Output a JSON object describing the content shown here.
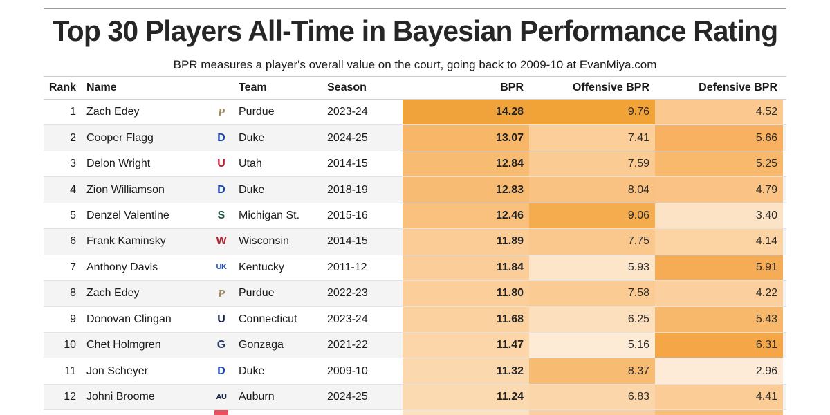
{
  "chart_data": {
    "type": "table",
    "title": "Top 30 Players All-Time in Bayesian Performance Rating",
    "subtitle": "BPR measures a player's overall value on the court, going back to 2009-10 at EvanMiya.com",
    "columns": [
      "Rank",
      "Name",
      "Team",
      "Season",
      "BPR",
      "Offensive BPR",
      "Defensive BPR"
    ],
    "rows": [
      {
        "rank": "1",
        "name": "Zach Edey",
        "team": "Purdue",
        "season": "2023-24",
        "bpr": "14.28",
        "obpr": "9.76",
        "dbpr": "4.52",
        "logo": {
          "label": "P",
          "color": "#9D8A5F",
          "serif": true
        },
        "colors": {
          "bpr": "#F0A33B",
          "obpr": "#F1A338",
          "dbpr": "#FBC98F"
        }
      },
      {
        "rank": "2",
        "name": "Cooper Flagg",
        "team": "Duke",
        "season": "2024-25",
        "bpr": "13.07",
        "obpr": "7.41",
        "dbpr": "5.66",
        "logo": {
          "label": "D",
          "color": "#1646B5"
        },
        "colors": {
          "bpr": "#F7B668",
          "obpr": "#FBCE9A",
          "dbpr": "#F7B160"
        }
      },
      {
        "rank": "3",
        "name": "Delon Wright",
        "team": "Utah",
        "season": "2014-15",
        "bpr": "12.84",
        "obpr": "7.59",
        "dbpr": "5.25",
        "logo": {
          "label": "U",
          "color": "#CE1126"
        },
        "colors": {
          "bpr": "#F8BB72",
          "obpr": "#FACB92",
          "dbpr": "#F8B96D"
        }
      },
      {
        "rank": "4",
        "name": "Zion Williamson",
        "team": "Duke",
        "season": "2018-19",
        "bpr": "12.83",
        "obpr": "8.04",
        "dbpr": "4.79",
        "logo": {
          "label": "D",
          "color": "#1646B5"
        },
        "colors": {
          "bpr": "#F8BB73",
          "obpr": "#F9C283",
          "dbpr": "#FAC285"
        }
      },
      {
        "rank": "5",
        "name": "Denzel Valentine",
        "team": "Michigan St.",
        "season": "2015-16",
        "bpr": "12.46",
        "obpr": "9.06",
        "dbpr": "3.40",
        "logo": {
          "label": "S",
          "color": "#1E5741"
        },
        "colors": {
          "bpr": "#F9C07E",
          "obpr": "#F4AC4E",
          "dbpr": "#FDE3C6"
        }
      },
      {
        "rank": "6",
        "name": "Frank Kaminsky",
        "team": "Wisconsin",
        "season": "2014-15",
        "bpr": "11.89",
        "obpr": "7.75",
        "dbpr": "4.14",
        "logo": {
          "label": "W",
          "color": "#AD2433"
        },
        "colors": {
          "bpr": "#FBCC96",
          "obpr": "#FAC88D",
          "dbpr": "#FCD3A3"
        }
      },
      {
        "rank": "7",
        "name": "Anthony Davis",
        "team": "Kentucky",
        "season": "2011-12",
        "bpr": "11.84",
        "obpr": "5.93",
        "dbpr": "5.91",
        "logo": {
          "label": "UK",
          "color": "#2050C8",
          "small": true
        },
        "colors": {
          "bpr": "#FBCD98",
          "obpr": "#FDE5C9",
          "dbpr": "#F6AC55"
        }
      },
      {
        "rank": "8",
        "name": "Zach Edey",
        "team": "Purdue",
        "season": "2022-23",
        "bpr": "11.80",
        "obpr": "7.58",
        "dbpr": "4.22",
        "logo": {
          "label": "P",
          "color": "#9D8A5F",
          "serif": true
        },
        "colors": {
          "bpr": "#FBCE9A",
          "obpr": "#FACB93",
          "dbpr": "#FBD09E"
        }
      },
      {
        "rank": "9",
        "name": "Donovan Clingan",
        "team": "Connecticut",
        "season": "2023-24",
        "bpr": "11.68",
        "obpr": "6.25",
        "dbpr": "5.43",
        "logo": {
          "label": "U",
          "color": "#19224F"
        },
        "colors": {
          "bpr": "#FBD1A0",
          "obpr": "#FCDFBD",
          "dbpr": "#F8B86B"
        }
      },
      {
        "rank": "10",
        "name": "Chet Holmgren",
        "team": "Gonzaga",
        "season": "2021-22",
        "bpr": "11.47",
        "obpr": "5.16",
        "dbpr": "6.31",
        "logo": {
          "label": "G",
          "color": "#2B3A67"
        },
        "colors": {
          "bpr": "#FCD5A8",
          "obpr": "#FEEBD6",
          "dbpr": "#F5A748"
        }
      },
      {
        "rank": "11",
        "name": "Jon Scheyer",
        "team": "Duke",
        "season": "2009-10",
        "bpr": "11.32",
        "obpr": "8.37",
        "dbpr": "2.96",
        "logo": {
          "label": "D",
          "color": "#1646B5"
        },
        "colors": {
          "bpr": "#FCD8AE",
          "obpr": "#F7BC72",
          "dbpr": "#FDEBD8"
        }
      },
      {
        "rank": "12",
        "name": "Johni Broome",
        "team": "Auburn",
        "season": "2024-25",
        "bpr": "11.24",
        "obpr": "6.83",
        "dbpr": "4.41",
        "logo": {
          "label": "AU",
          "color": "#12294B",
          "small": true
        },
        "colors": {
          "bpr": "#FCDAB1",
          "obpr": "#FBD6AA",
          "dbpr": "#FBCC96"
        }
      }
    ],
    "partial_next_row": {
      "logo_color": "#E8505B",
      "colors": {
        "bpr": "#FDE2C2",
        "obpr": "#FBD0A0",
        "dbpr": "#F9BE75"
      }
    }
  },
  "style": {
    "heat_dark": "#F0A33B",
    "heat_light": "#FDEBD8",
    "zebra": "#F4F4F4",
    "top_rule": "#9B9B9B",
    "header_rule": "#CFCFCF",
    "row_separator": "#E2E2E2"
  }
}
